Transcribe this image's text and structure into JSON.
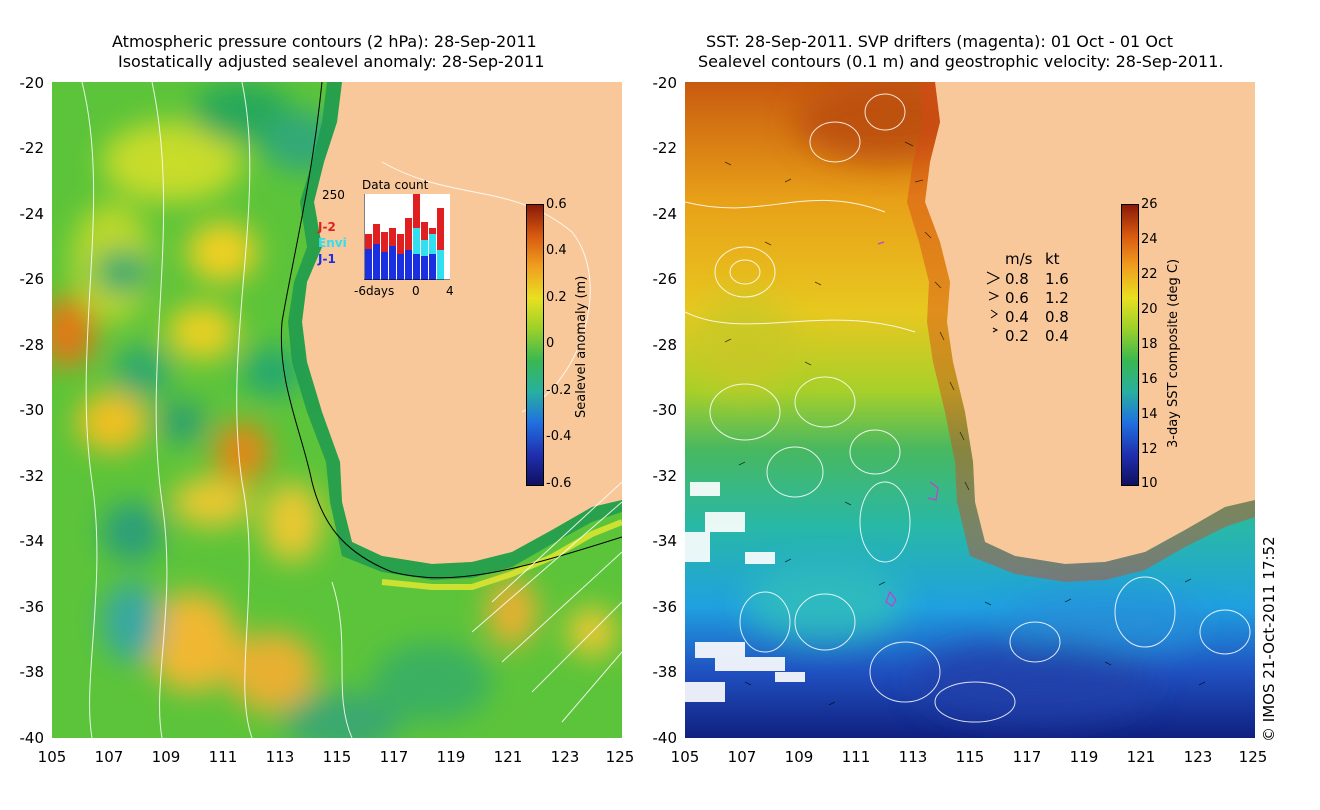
{
  "left_panel": {
    "title_line1": "Atmospheric pressure contours (2 hPa): 28-Sep-2011",
    "title_line2": "Isostatically adjusted sealevel anomaly: 28-Sep-2011",
    "y_ticks": [
      "-20",
      "-22",
      "-24",
      "-26",
      "-28",
      "-30",
      "-32",
      "-34",
      "-36",
      "-38",
      "-40"
    ],
    "x_ticks": [
      "105",
      "107",
      "109",
      "111",
      "113",
      "115",
      "117",
      "119",
      "121",
      "123",
      "125"
    ],
    "colorbar": {
      "label": "Sealevel anomaly (m)",
      "ticks": [
        "0.6",
        "0.4",
        "0.2",
        "0",
        "-0.2",
        "-0.4",
        "-0.6"
      ],
      "range": [
        -0.6,
        0.6
      ]
    },
    "data_count_inset": {
      "title": "Data count",
      "y_max_label": "250",
      "x_labels": [
        "-6days",
        "0",
        "4"
      ],
      "legend": [
        {
          "name": "J-2",
          "color": "#e02020"
        },
        {
          "name": "Envi",
          "color": "#30e0f0"
        },
        {
          "name": "J-1",
          "color": "#1a30e0"
        }
      ]
    }
  },
  "right_panel": {
    "title_line1": "SST: 28-Sep-2011. SVP drifters (magenta): 01 Oct - 01 Oct",
    "title_line2": "Sealevel contours (0.1 m) and geostrophic velocity: 28-Sep-2011.",
    "y_ticks": [
      "-20",
      "-22",
      "-24",
      "-26",
      "-28",
      "-30",
      "-32",
      "-34",
      "-36",
      "-38",
      "-40"
    ],
    "x_ticks": [
      "105",
      "107",
      "109",
      "111",
      "113",
      "115",
      "117",
      "119",
      "121",
      "123",
      "125"
    ],
    "colorbar": {
      "label": "3-day SST composite (deg C)",
      "ticks": [
        "26",
        "24",
        "22",
        "20",
        "18",
        "16",
        "14",
        "12",
        "10"
      ],
      "range": [
        10,
        26
      ]
    },
    "velocity_key": {
      "header_ms": "m/s",
      "header_kt": "kt",
      "rows": [
        {
          "ms": "0.8",
          "kt": "1.6"
        },
        {
          "ms": "0.6",
          "kt": "1.2"
        },
        {
          "ms": "0.4",
          "kt": "0.8"
        },
        {
          "ms": "0.2",
          "kt": "0.4"
        }
      ]
    }
  },
  "credit": "© IMOS 21-Oct-2011 17:52",
  "colors": {
    "land": "#f9c89a",
    "drifter": "#c040d0"
  }
}
